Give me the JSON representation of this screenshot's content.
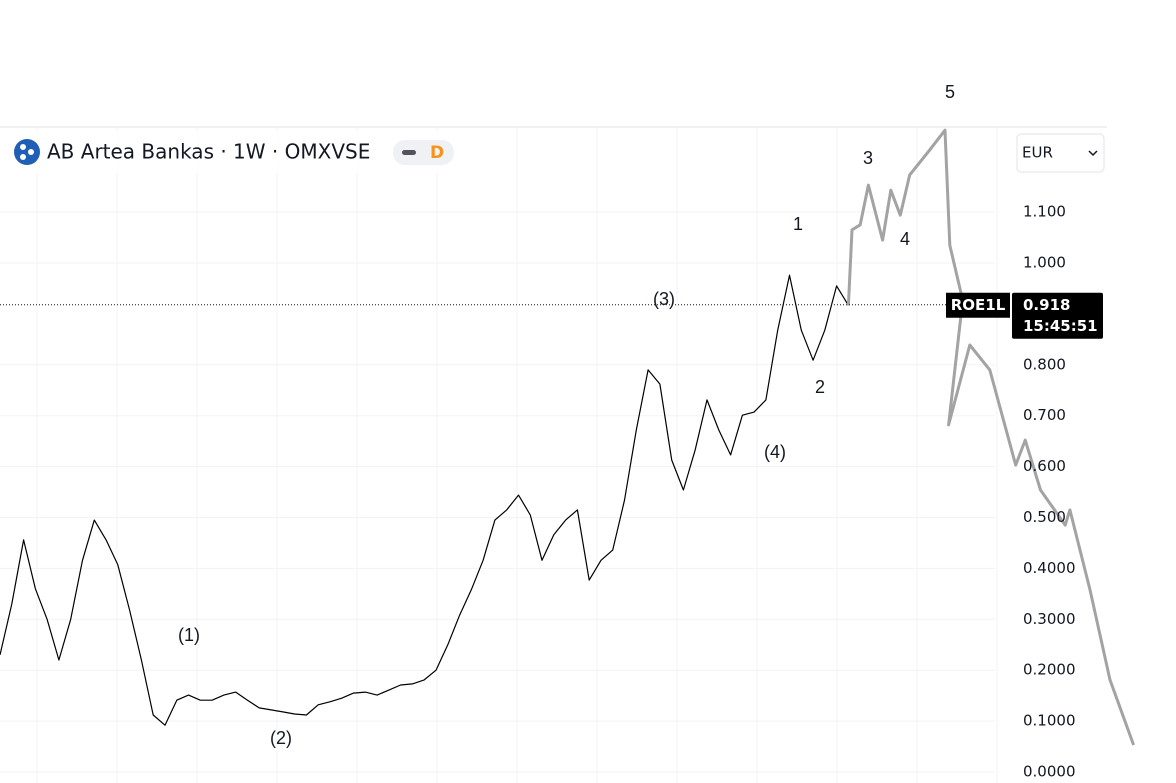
{
  "chart_data": {
    "type": "line",
    "title": "AB Artea Bankas · 1W · OMXVSE",
    "interval_badge": "D",
    "currency": "EUR",
    "last_value": 0.918,
    "last_time": "15:45:51",
    "xlim": [
      0,
      99.8
    ],
    "ylim": [
      -0.0216,
      1.2672
    ],
    "yticks": [
      {
        "value": 0,
        "label": "0.0000"
      },
      {
        "value": 0.1,
        "label": "0.1000"
      },
      {
        "value": 0.2,
        "label": "0.2000"
      },
      {
        "value": 0.3,
        "label": "0.3000"
      },
      {
        "value": 0.4,
        "label": "0.4000"
      },
      {
        "value": 0.5,
        "label": "0.500"
      },
      {
        "value": 0.6,
        "label": "0.600"
      },
      {
        "value": 0.7,
        "label": "0.700"
      },
      {
        "value": 0.8,
        "label": "0.800"
      },
      {
        "value": 1.0,
        "label": "1.000"
      },
      {
        "value": 1.1,
        "label": "1.100"
      }
    ],
    "grid": true,
    "series": [
      {
        "name": "ROE1L",
        "color": "#000000",
        "x": [
          0,
          1,
          2,
          3,
          4,
          5,
          6,
          7,
          8,
          9,
          10,
          11,
          12,
          13,
          14,
          15,
          16,
          17,
          18,
          19,
          20,
          21,
          22,
          23,
          24,
          25,
          26,
          27,
          28,
          29,
          30,
          31,
          32,
          33,
          34,
          35,
          36,
          37,
          38,
          39,
          40,
          41,
          42,
          43,
          44,
          45,
          46,
          47,
          48,
          49,
          50,
          51,
          52,
          53,
          54,
          55,
          56,
          57,
          58,
          59,
          60,
          61,
          62,
          63,
          64,
          65,
          66,
          67,
          68,
          69,
          70,
          71,
          72
        ],
        "values": [
          0.23,
          0.33,
          0.456,
          0.36,
          0.3,
          0.22,
          0.3,
          0.416,
          0.495,
          0.456,
          0.407,
          0.318,
          0.22,
          0.112,
          0.092,
          0.141,
          0.151,
          0.141,
          0.141,
          0.151,
          0.157,
          0.141,
          0.126,
          0.122,
          0.118,
          0.114,
          0.112,
          0.132,
          0.138,
          0.145,
          0.155,
          0.157,
          0.151,
          0.161,
          0.171,
          0.173,
          0.181,
          0.2,
          0.25,
          0.308,
          0.358,
          0.416,
          0.495,
          0.515,
          0.544,
          0.505,
          0.416,
          0.466,
          0.495,
          0.515,
          0.377,
          0.416,
          0.436,
          0.534,
          0.672,
          0.79,
          0.762,
          0.613,
          0.554,
          0.633,
          0.731,
          0.672,
          0.623,
          0.701,
          0.707,
          0.731,
          0.868,
          0.976,
          0.868,
          0.809,
          0.868,
          0.955,
          0.917
        ]
      },
      {
        "color": "#a3a3a3",
        "x": [
          72,
          72.3,
          73,
          73.7,
          74.9,
          75.6,
          76.4,
          77.2,
          78.9,
          80.2,
          80.6,
          81.7,
          80.5,
          82.3,
          84,
          86.2,
          87,
          88.3,
          90.4,
          90.8,
          92.5,
          94.2,
          96.2
        ],
        "values": [
          0.917,
          1.065,
          1.075,
          1.153,
          1.045,
          1.143,
          1.094,
          1.173,
          1.222,
          1.261,
          1.035,
          0.927,
          0.682,
          0.839,
          0.79,
          0.603,
          0.652,
          0.554,
          0.485,
          0.515,
          0.358,
          0.181,
          0.053
        ]
      }
    ],
    "annotations": [
      "5",
      "3",
      "1",
      "4",
      "(3)",
      "2",
      "(4)",
      "(1)",
      "(2)"
    ]
  }
}
